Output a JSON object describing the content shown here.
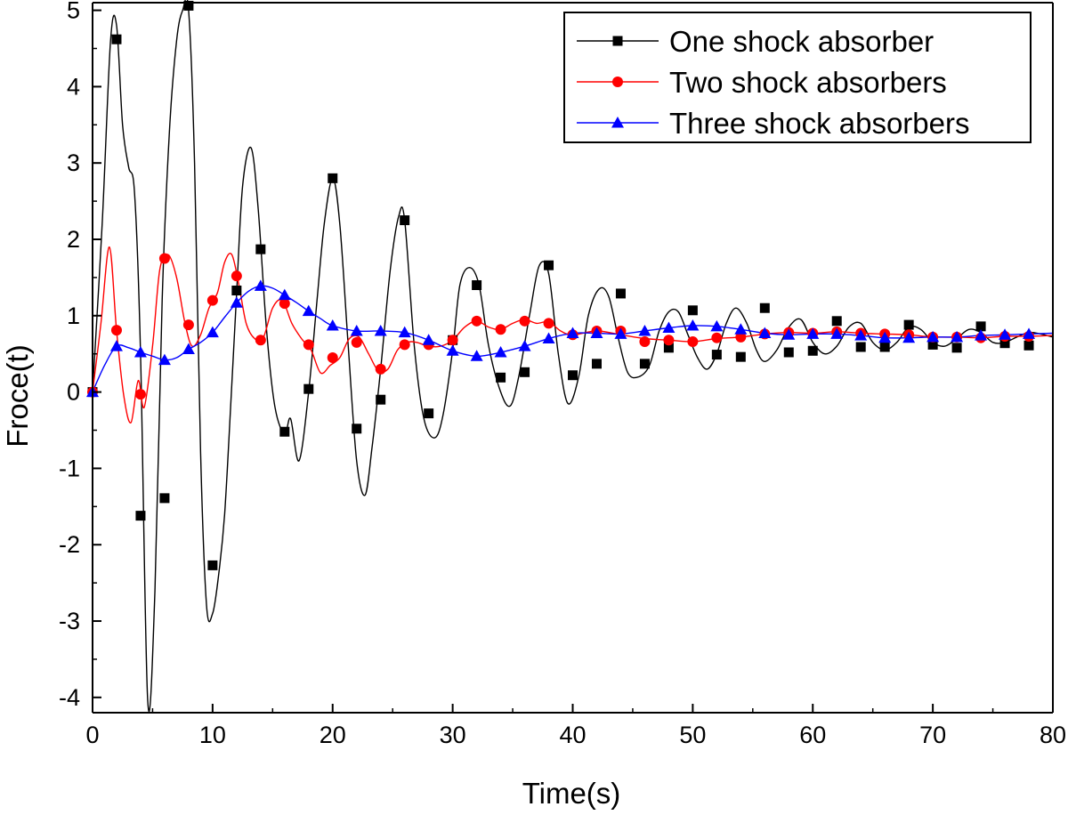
{
  "chart_data": {
    "type": "line",
    "title": "",
    "xlabel": "Time(s)",
    "ylabel": "Froce(t)",
    "xlim": [
      0,
      80
    ],
    "ylim": [
      -4.2,
      5.1
    ],
    "x_ticks": [
      0,
      10,
      20,
      30,
      40,
      50,
      60,
      70,
      80
    ],
    "y_ticks": [
      -4,
      -3,
      -2,
      -1,
      0,
      1,
      2,
      3,
      4,
      5
    ],
    "grid": false,
    "legend_position": "top-right",
    "series": [
      {
        "name": "One shock absorber",
        "color": "#000000",
        "marker": "square",
        "x": [
          0,
          2,
          4,
          6,
          8,
          10,
          12,
          14,
          16,
          18,
          20,
          22,
          24,
          26,
          28,
          30,
          32,
          34,
          36,
          38,
          40,
          42,
          44,
          46,
          48,
          50,
          52,
          54,
          56,
          58,
          60,
          62,
          64,
          66,
          68,
          70,
          72,
          74,
          76,
          78
        ],
        "values": [
          0,
          4.62,
          -1.62,
          -1.39,
          5.06,
          -2.27,
          1.33,
          1.87,
          -0.52,
          0.04,
          2.8,
          -0.48,
          -0.1,
          2.25,
          -0.28,
          0.68,
          1.4,
          0.19,
          0.26,
          1.66,
          0.22,
          0.37,
          1.29,
          0.37,
          0.58,
          1.07,
          0.49,
          0.46,
          1.1,
          0.52,
          0.54,
          0.93,
          0.59,
          0.59,
          0.88,
          0.62,
          0.58,
          0.86,
          0.64,
          0.61
        ],
        "curve_x": [
          0,
          0.8,
          1.5,
          2.0,
          2.5,
          3.0,
          3.5,
          4.0,
          4.6,
          5.2,
          5.8,
          6.4,
          7.0,
          7.5,
          8.0,
          8.5,
          9.0,
          9.5,
          10.0,
          10.5,
          11.0,
          11.5,
          12.0,
          12.5,
          13.2,
          13.8,
          14.5,
          15.2,
          16.0,
          16.5,
          17.2,
          18.0,
          18.7,
          19.3,
          20.0,
          20.6,
          21.3,
          22.0,
          22.7,
          23.3,
          24.0,
          24.8,
          25.5,
          26.0,
          26.8,
          27.6,
          28.5,
          29.2,
          30.0,
          30.6,
          31.4,
          32.2,
          33.0,
          34.0,
          34.8,
          35.5,
          36.4,
          37.2,
          38.0,
          38.8,
          39.6,
          40.5,
          41.3,
          42.2,
          43.0,
          43.8,
          44.6,
          45.5,
          46.4,
          47.2,
          48.0,
          48.8,
          49.6,
          50.4,
          51.2,
          52.0,
          52.8,
          53.6,
          54.5,
          55.3,
          56.0,
          57.0,
          58.0,
          59.0,
          60.0,
          61.0,
          62.0,
          63.0,
          64.0,
          65.0,
          66.0,
          67.0,
          68.0,
          69.0,
          70.0,
          71.0,
          72.0,
          73.0,
          74.0,
          75.0,
          76.0,
          77.0,
          78.0,
          79.0,
          80.0
        ],
        "curve_y": [
          0,
          2.2,
          4.6,
          4.8,
          3.5,
          2.95,
          2.6,
          0.5,
          -4.05,
          -2.6,
          1.2,
          3.4,
          4.6,
          5.0,
          5.0,
          3.0,
          -0.8,
          -2.8,
          -2.9,
          -2.4,
          -1.6,
          -0.2,
          1.3,
          2.7,
          3.2,
          2.4,
          0.8,
          -0.2,
          -0.55,
          -0.35,
          -0.9,
          0.0,
          1.2,
          2.2,
          2.8,
          2.2,
          0.6,
          -0.9,
          -1.35,
          -0.7,
          0.3,
          1.6,
          2.3,
          2.25,
          0.6,
          -0.35,
          -0.6,
          -0.3,
          0.55,
          1.4,
          1.63,
          1.4,
          0.6,
          0.0,
          -0.18,
          0.2,
          1.0,
          1.65,
          1.55,
          0.5,
          -0.15,
          0.2,
          1.0,
          1.35,
          1.25,
          0.7,
          0.25,
          0.2,
          0.35,
          0.8,
          1.05,
          1.05,
          0.75,
          0.45,
          0.3,
          0.5,
          0.9,
          1.1,
          0.9,
          0.55,
          0.4,
          0.55,
          0.85,
          0.95,
          0.65,
          0.5,
          0.6,
          0.85,
          0.9,
          0.65,
          0.55,
          0.65,
          0.85,
          0.82,
          0.65,
          0.6,
          0.7,
          0.82,
          0.78,
          0.65,
          0.65,
          0.72,
          0.78,
          0.76,
          0.72
        ]
      },
      {
        "name": "Two shock absorbers",
        "color": "#ff0000",
        "marker": "circle",
        "x": [
          0,
          2,
          4,
          6,
          8,
          10,
          12,
          14,
          16,
          18,
          20,
          22,
          24,
          26,
          28,
          30,
          32,
          34,
          36,
          38,
          40,
          42,
          44,
          46,
          48,
          50,
          52,
          54,
          56,
          58,
          60,
          62,
          64,
          66,
          68,
          70,
          72,
          74,
          76,
          78
        ],
        "values": [
          0,
          0.81,
          -0.03,
          1.75,
          0.88,
          1.2,
          1.52,
          0.68,
          1.16,
          0.62,
          0.45,
          0.65,
          0.3,
          0.62,
          0.62,
          0.68,
          0.93,
          0.82,
          0.93,
          0.9,
          0.75,
          0.8,
          0.8,
          0.66,
          0.68,
          0.66,
          0.71,
          0.72,
          0.76,
          0.78,
          0.77,
          0.79,
          0.77,
          0.76,
          0.75,
          0.72,
          0.72,
          0.71,
          0.73,
          0.73
        ],
        "curve_x": [
          0,
          0.7,
          1.4,
          2.0,
          2.6,
          3.2,
          3.8,
          4.3,
          5.0,
          5.6,
          6.3,
          7.0,
          7.7,
          8.3,
          9.0,
          9.7,
          10.4,
          11.0,
          11.6,
          12.2,
          12.8,
          13.5,
          14.2,
          15.0,
          15.8,
          16.6,
          17.4,
          18.2,
          19.0,
          19.8,
          20.6,
          21.4,
          22.2,
          23.0,
          23.8,
          24.6,
          25.4,
          26.2,
          27.0,
          28.0,
          29.0,
          30.0,
          31.0,
          32.0,
          33.0,
          34.0,
          35.0,
          36.0,
          37.0,
          38.0,
          39.0,
          40.0,
          42.0,
          44.0,
          46.0,
          48.0,
          50.0,
          52.0,
          54.0,
          56.0,
          58.0,
          60.0,
          62.0,
          64.0,
          66.0,
          68.0,
          70.0,
          72.0,
          74.0,
          76.0,
          78.0,
          80.0
        ],
        "curve_y": [
          0,
          0.9,
          1.9,
          0.8,
          -0.05,
          -0.4,
          0.15,
          -0.2,
          0.6,
          1.6,
          1.8,
          1.5,
          0.9,
          0.6,
          0.75,
          1.1,
          1.3,
          1.7,
          1.8,
          1.4,
          0.9,
          0.7,
          0.7,
          1.1,
          1.2,
          0.9,
          0.7,
          0.55,
          0.25,
          0.35,
          0.45,
          0.7,
          0.72,
          0.5,
          0.28,
          0.3,
          0.55,
          0.65,
          0.65,
          0.6,
          0.6,
          0.68,
          0.85,
          0.93,
          0.85,
          0.82,
          0.9,
          0.95,
          0.9,
          0.92,
          0.8,
          0.75,
          0.8,
          0.75,
          0.7,
          0.68,
          0.66,
          0.7,
          0.72,
          0.76,
          0.78,
          0.77,
          0.79,
          0.77,
          0.76,
          0.75,
          0.72,
          0.72,
          0.71,
          0.73,
          0.73,
          0.74
        ]
      },
      {
        "name": "Three shock absorbers",
        "color": "#0000ff",
        "marker": "triangle",
        "x": [
          0,
          2,
          4,
          6,
          8,
          10,
          12,
          14,
          16,
          18,
          20,
          22,
          24,
          26,
          28,
          30,
          32,
          34,
          36,
          38,
          40,
          42,
          44,
          46,
          48,
          50,
          52,
          54,
          56,
          58,
          60,
          62,
          64,
          66,
          68,
          70,
          72,
          74,
          76,
          78
        ],
        "values": [
          0,
          0.6,
          0.52,
          0.42,
          0.56,
          0.78,
          1.17,
          1.39,
          1.27,
          1.06,
          0.87,
          0.8,
          0.8,
          0.78,
          0.68,
          0.54,
          0.47,
          0.52,
          0.6,
          0.7,
          0.77,
          0.77,
          0.76,
          0.8,
          0.84,
          0.87,
          0.86,
          0.82,
          0.77,
          0.75,
          0.76,
          0.76,
          0.74,
          0.71,
          0.71,
          0.72,
          0.72,
          0.74,
          0.75,
          0.76
        ],
        "curve_x": [
          0,
          1.0,
          2.0,
          3.0,
          4.0,
          5.0,
          6.0,
          7.0,
          8.0,
          9.0,
          10.0,
          11.0,
          12.0,
          13.0,
          14.0,
          15.0,
          16.0,
          17.0,
          18.0,
          19.0,
          20.0,
          22.0,
          24.0,
          26.0,
          28.0,
          30.0,
          32.0,
          34.0,
          36.0,
          38.0,
          40.0,
          42.0,
          44.0,
          46.0,
          48.0,
          50.0,
          52.0,
          54.0,
          56.0,
          58.0,
          60.0,
          62.0,
          64.0,
          66.0,
          68.0,
          70.0,
          72.0,
          74.0,
          76.0,
          78.0,
          80.0
        ],
        "curve_y": [
          0,
          0.35,
          0.6,
          0.58,
          0.52,
          0.47,
          0.42,
          0.45,
          0.56,
          0.65,
          0.78,
          0.98,
          1.17,
          1.32,
          1.39,
          1.36,
          1.27,
          1.17,
          1.06,
          0.96,
          0.87,
          0.8,
          0.8,
          0.78,
          0.68,
          0.54,
          0.47,
          0.52,
          0.6,
          0.7,
          0.77,
          0.77,
          0.76,
          0.8,
          0.84,
          0.87,
          0.86,
          0.82,
          0.77,
          0.75,
          0.76,
          0.76,
          0.74,
          0.71,
          0.71,
          0.72,
          0.72,
          0.74,
          0.75,
          0.76,
          0.77
        ]
      }
    ]
  }
}
